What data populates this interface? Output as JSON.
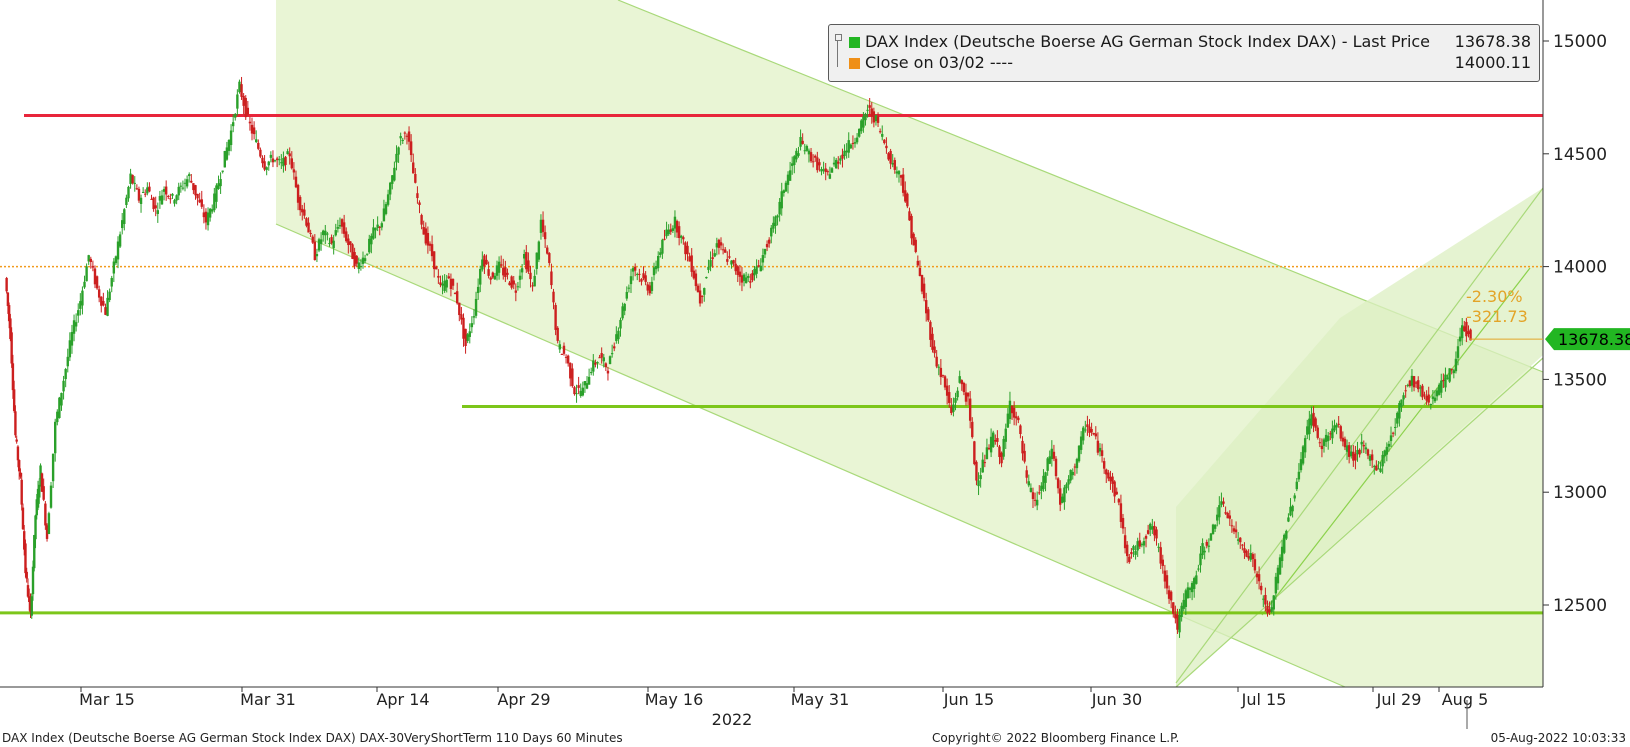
{
  "chart_data": {
    "type": "candlestick",
    "x_labels": [
      "Mar 15",
      "Mar 31",
      "Apr 14",
      "Apr 29",
      "May 16",
      "May 31",
      "Jun 15",
      "Jun 30",
      "Jul 15",
      "Jul 29",
      "Aug 5"
    ],
    "x_year_label": "2022",
    "y_ticks": [
      12500,
      13000,
      13500,
      14000,
      14500,
      15000
    ],
    "ylim": [
      12180,
      15100
    ],
    "series": [
      {
        "name": "DAX Index (Deutsche Boerse AG German Stock Index DAX) - Last Price",
        "last_value": 13678.38
      },
      {
        "name": "Close on 03/02 ----",
        "value": 14000.11
      }
    ],
    "price_path": [
      [
        0,
        13950
      ],
      [
        0.3,
        13700
      ],
      [
        0.6,
        13250
      ],
      [
        0.9,
        13050
      ],
      [
        1.2,
        12650
      ],
      [
        1.5,
        12450
      ],
      [
        1.8,
        12900
      ],
      [
        2.1,
        13100
      ],
      [
        2.5,
        12800
      ],
      [
        3.0,
        13300
      ],
      [
        3.5,
        13500
      ],
      [
        4.0,
        13700
      ],
      [
        4.5,
        13850
      ],
      [
        5.0,
        14050
      ],
      [
        5.5,
        13900
      ],
      [
        6.0,
        13800
      ],
      [
        6.5,
        14000
      ],
      [
        7.0,
        14200
      ],
      [
        7.5,
        14400
      ],
      [
        8.0,
        14300
      ],
      [
        8.5,
        14350
      ],
      [
        9.0,
        14250
      ],
      [
        9.5,
        14350
      ],
      [
        10.0,
        14300
      ],
      [
        10.5,
        14350
      ],
      [
        11.0,
        14400
      ],
      [
        11.5,
        14300
      ],
      [
        12.0,
        14200
      ],
      [
        12.5,
        14300
      ],
      [
        13.0,
        14450
      ],
      [
        13.5,
        14600
      ],
      [
        14.0,
        14800
      ],
      [
        14.5,
        14650
      ],
      [
        15.0,
        14550
      ],
      [
        15.5,
        14450
      ],
      [
        16.0,
        14480
      ],
      [
        16.5,
        14450
      ],
      [
        17.0,
        14500
      ],
      [
        17.5,
        14300
      ],
      [
        18.0,
        14200
      ],
      [
        18.5,
        14050
      ],
      [
        19.0,
        14150
      ],
      [
        19.5,
        14100
      ],
      [
        20.0,
        14200
      ],
      [
        20.5,
        14100
      ],
      [
        21.0,
        14000
      ],
      [
        21.5,
        14050
      ],
      [
        22.0,
        14150
      ],
      [
        22.5,
        14200
      ],
      [
        23.0,
        14350
      ],
      [
        23.5,
        14550
      ],
      [
        24.0,
        14600
      ],
      [
        24.5,
        14350
      ],
      [
        25.0,
        14150
      ],
      [
        25.5,
        14050
      ],
      [
        26.0,
        13900
      ],
      [
        26.5,
        13950
      ],
      [
        27.0,
        13850
      ],
      [
        27.5,
        13650
      ],
      [
        28.0,
        13800
      ],
      [
        28.5,
        14050
      ],
      [
        29.0,
        13950
      ],
      [
        29.5,
        14000
      ],
      [
        30.0,
        13950
      ],
      [
        30.5,
        13900
      ],
      [
        31.0,
        14050
      ],
      [
        31.5,
        13900
      ],
      [
        32.0,
        14200
      ],
      [
        32.5,
        14000
      ],
      [
        33.0,
        13650
      ],
      [
        33.5,
        13600
      ],
      [
        34.0,
        13450
      ],
      [
        34.5,
        13450
      ],
      [
        35.0,
        13550
      ],
      [
        35.5,
        13600
      ],
      [
        36.0,
        13550
      ],
      [
        36.5,
        13700
      ],
      [
        37.0,
        13850
      ],
      [
        37.5,
        14000
      ],
      [
        38.0,
        13950
      ],
      [
        38.5,
        13900
      ],
      [
        39.0,
        14050
      ],
      [
        39.5,
        14150
      ],
      [
        40.0,
        14200
      ],
      [
        40.5,
        14100
      ],
      [
        41.0,
        14000
      ],
      [
        41.5,
        13850
      ],
      [
        42.0,
        14000
      ],
      [
        42.5,
        14100
      ],
      [
        43.0,
        14050
      ],
      [
        43.5,
        14000
      ],
      [
        44.0,
        13950
      ],
      [
        44.5,
        13950
      ],
      [
        45.0,
        14000
      ],
      [
        45.5,
        14100
      ],
      [
        46.0,
        14200
      ],
      [
        46.5,
        14350
      ],
      [
        47.0,
        14450
      ],
      [
        47.5,
        14550
      ],
      [
        48.0,
        14500
      ],
      [
        48.5,
        14450
      ],
      [
        49.0,
        14400
      ],
      [
        49.5,
        14450
      ],
      [
        50.0,
        14500
      ],
      [
        50.5,
        14550
      ],
      [
        51.0,
        14600
      ],
      [
        51.5,
        14700
      ],
      [
        52.0,
        14650
      ],
      [
        52.5,
        14550
      ],
      [
        53.0,
        14450
      ],
      [
        53.5,
        14400
      ],
      [
        54.0,
        14200
      ],
      [
        54.5,
        14000
      ],
      [
        55.0,
        13800
      ],
      [
        55.5,
        13600
      ],
      [
        56.0,
        13500
      ],
      [
        56.5,
        13350
      ],
      [
        57.0,
        13500
      ],
      [
        57.5,
        13400
      ],
      [
        58.0,
        13050
      ],
      [
        58.5,
        13150
      ],
      [
        59.0,
        13250
      ],
      [
        59.5,
        13150
      ],
      [
        60.0,
        13400
      ],
      [
        60.5,
        13300
      ],
      [
        61.0,
        13050
      ],
      [
        61.5,
        12950
      ],
      [
        62.0,
        13050
      ],
      [
        62.5,
        13200
      ],
      [
        63.0,
        12950
      ],
      [
        63.5,
        13050
      ],
      [
        64.0,
        13150
      ],
      [
        64.5,
        13300
      ],
      [
        65.0,
        13250
      ],
      [
        65.5,
        13150
      ],
      [
        66.0,
        13050
      ],
      [
        66.5,
        12950
      ],
      [
        67.0,
        12700
      ],
      [
        67.5,
        12750
      ],
      [
        68.0,
        12800
      ],
      [
        68.5,
        12850
      ],
      [
        69.0,
        12700
      ],
      [
        69.5,
        12550
      ],
      [
        70.0,
        12400
      ],
      [
        70.5,
        12550
      ],
      [
        71.0,
        12600
      ],
      [
        71.5,
        12750
      ],
      [
        72.0,
        12800
      ],
      [
        72.5,
        12950
      ],
      [
        73.0,
        12900
      ],
      [
        73.5,
        12800
      ],
      [
        74.0,
        12750
      ],
      [
        74.5,
        12700
      ],
      [
        75.0,
        12550
      ],
      [
        75.5,
        12450
      ],
      [
        76.0,
        12650
      ],
      [
        76.5,
        12850
      ],
      [
        77.0,
        13000
      ],
      [
        77.5,
        13200
      ],
      [
        78.0,
        13350
      ],
      [
        78.5,
        13200
      ],
      [
        79.0,
        13250
      ],
      [
        79.5,
        13300
      ],
      [
        80.0,
        13200
      ],
      [
        80.5,
        13150
      ],
      [
        81.0,
        13200
      ],
      [
        81.5,
        13150
      ],
      [
        82.0,
        13100
      ],
      [
        82.5,
        13200
      ],
      [
        83.0,
        13300
      ],
      [
        83.5,
        13450
      ],
      [
        84.0,
        13500
      ],
      [
        84.5,
        13450
      ],
      [
        85.0,
        13400
      ],
      [
        85.5,
        13450
      ],
      [
        86.0,
        13500
      ],
      [
        86.5,
        13550
      ],
      [
        87.0,
        13750
      ],
      [
        87.5,
        13680
      ]
    ],
    "horizontal_lines": [
      {
        "value": 14670,
        "color": "#e8253b"
      },
      {
        "value": 14000.11,
        "color": "#f29b1d"
      },
      {
        "value": 13380,
        "color": "#7cc61a"
      },
      {
        "value": 12465,
        "color": "#7cc61a"
      }
    ],
    "annotations": {
      "pct_change": "-2.30%",
      "abs_change": "-321.73",
      "last_badge": "13678.38"
    }
  },
  "footer": {
    "left": "DAX Index (Deutsche Boerse AG German Stock Index DAX) DAX-30VeryShortTerm 110 Days 60 Minutes",
    "center": "Copyright© 2022 Bloomberg Finance L.P.",
    "right": "05-Aug-2022 10:03:33"
  },
  "legend": {
    "row1_label": "DAX Index (Deutsche Boerse AG German Stock Index DAX) - Last Price",
    "row1_value": "13678.38",
    "row2_label": "Close on 03/02 ----",
    "row2_value": "14000.11"
  },
  "colors": {
    "up": "#2aa02a",
    "down": "#cc1f1f",
    "channel_fill": "#e9f5d5",
    "channel_line": "#a9d97a"
  }
}
